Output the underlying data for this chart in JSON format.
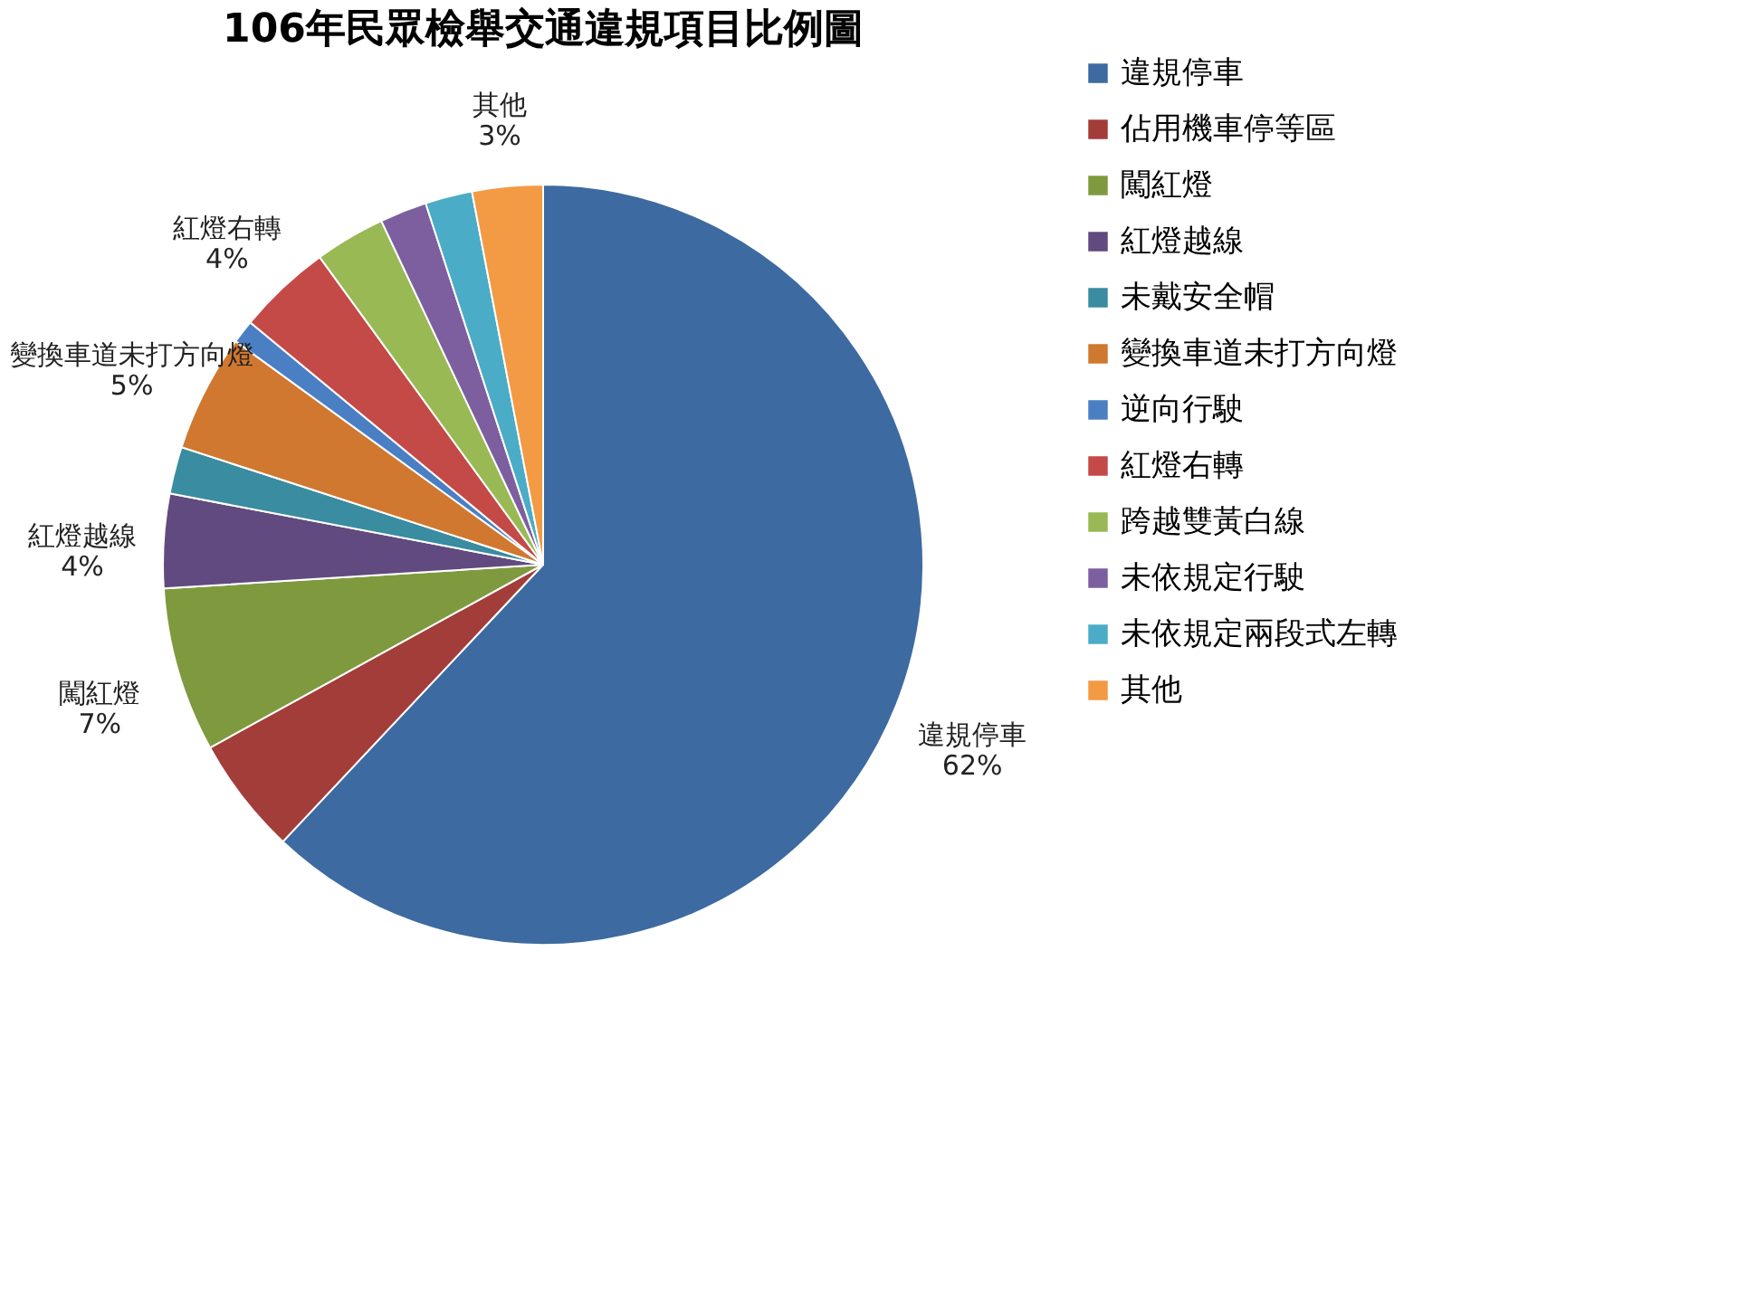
{
  "chart_data": {
    "type": "pie",
    "title": "106年民眾檢舉交通違規項目比例圖",
    "categories": [
      "違規停車",
      "佔用機車停等區",
      "闖紅燈",
      "紅燈越線",
      "未戴安全帽",
      "變換車道未打方向燈",
      "逆向行駛",
      "紅燈右轉",
      "跨越雙黃白線",
      "未依規定行駛",
      "未依規定兩段式左轉",
      "其他"
    ],
    "values": [
      62,
      5,
      7,
      4,
      2,
      5,
      1,
      4,
      3,
      2,
      2,
      3
    ],
    "value_labels": [
      "62%",
      null,
      "7%",
      "4%",
      null,
      "5%",
      null,
      "4%",
      null,
      null,
      null,
      "3%"
    ],
    "colors": [
      "#3d6aa0",
      "#a33d3a",
      "#7f9a3e",
      "#614a7f",
      "#3a8ca0",
      "#d0782f",
      "#4a7fc4",
      "#c44a47",
      "#98b954",
      "#7d5fa0",
      "#4aacc6",
      "#f39a45"
    ],
    "legend": "right"
  }
}
